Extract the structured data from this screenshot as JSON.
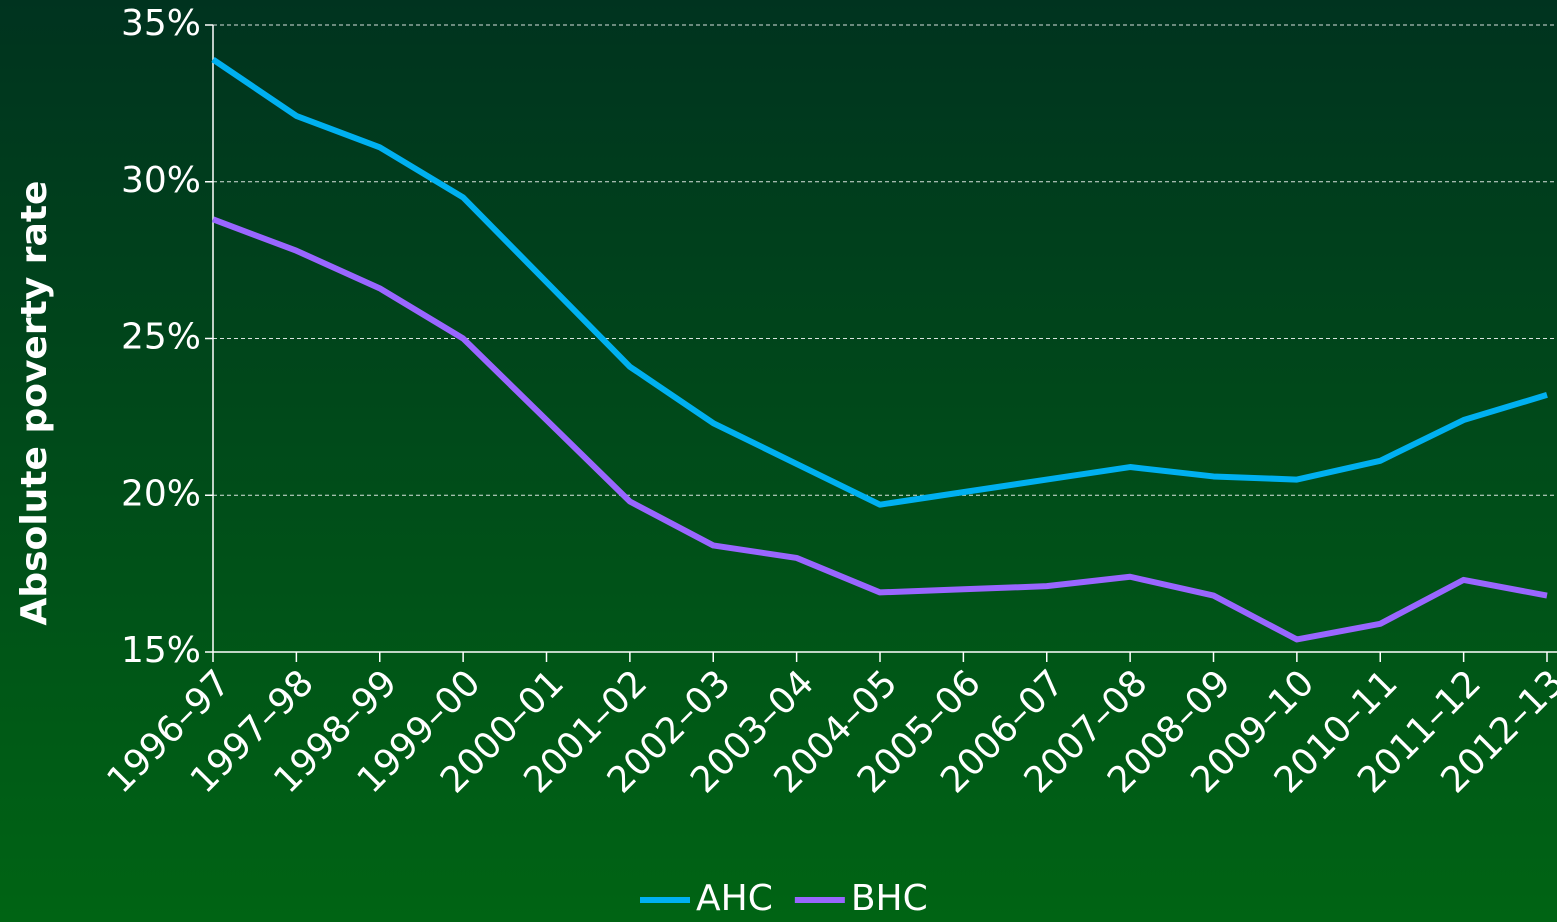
{
  "chart_data": {
    "type": "line",
    "ylabel": "Absolute poverty rate",
    "categories": [
      "1996–97",
      "1997–98",
      "1998–99",
      "1999–00",
      "2000–01",
      "2001–02",
      "2002–03",
      "2003–04",
      "2004–05",
      "2005–06",
      "2006–07",
      "2007–08",
      "2008–09",
      "2009–10",
      "2010–11",
      "2011–12",
      "2012–13"
    ],
    "series": [
      {
        "name": "AHC",
        "color": "#00b0f0",
        "values": [
          33.9,
          32.1,
          31.1,
          29.5,
          26.8,
          24.1,
          22.3,
          21.0,
          19.7,
          20.1,
          20.5,
          20.9,
          20.6,
          20.5,
          21.1,
          22.4,
          23.2
        ]
      },
      {
        "name": "BHC",
        "color": "#9966ff",
        "values": [
          28.8,
          27.8,
          26.6,
          25.0,
          22.4,
          19.8,
          18.4,
          18.0,
          16.9,
          17.0,
          17.1,
          17.4,
          16.8,
          15.4,
          15.9,
          17.3,
          16.8
        ]
      }
    ],
    "ylim": [
      15,
      35
    ],
    "yticks": [
      {
        "value": 15,
        "label": "15%"
      },
      {
        "value": 20,
        "label": "20%"
      },
      {
        "value": 25,
        "label": "25%"
      },
      {
        "value": 30,
        "label": "30%"
      },
      {
        "value": 35,
        "label": "35%"
      }
    ],
    "grid": true,
    "legend": "bottom"
  }
}
